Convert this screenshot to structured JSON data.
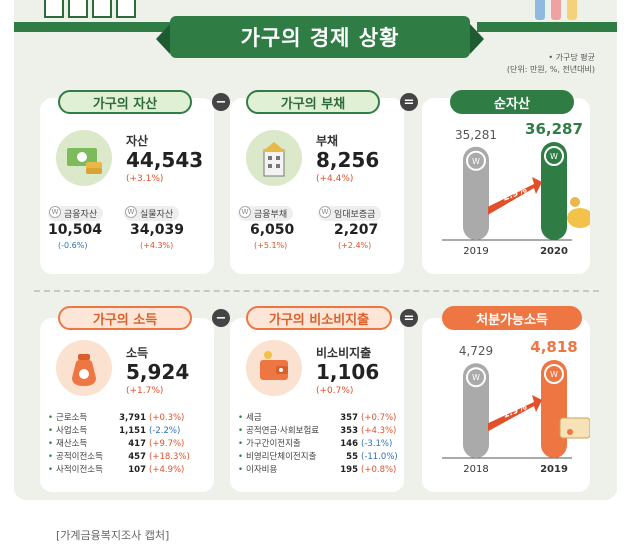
{
  "header": {
    "title": "가구의 경제 상황",
    "note1": "• 가구당 평균",
    "note2": "(단위: 만원, %, 전년대비)"
  },
  "colors": {
    "green": "#2f7d44",
    "orange": "#ee7643",
    "pos": "#e2502a",
    "neg": "#2e6fb7"
  },
  "row1": {
    "assets": {
      "pill": "가구의 자산",
      "name": "자산",
      "value": "44,543",
      "pct": "(+3.1%)",
      "sub": [
        {
          "label": "금융자산",
          "value": "10,504",
          "pct": "(-0.6%)"
        },
        {
          "label": "실물자산",
          "value": "34,039",
          "pct": "(+4.3%)"
        }
      ]
    },
    "debt": {
      "pill": "가구의 부채",
      "name": "부채",
      "value": "8,256",
      "pct": "(+4.4%)",
      "sub": [
        {
          "label": "금융부채",
          "value": "6,050",
          "pct": "(+5.1%)"
        },
        {
          "label": "임대보증금",
          "value": "2,207",
          "pct": "(+2.4%)"
        }
      ]
    },
    "net_pill": "순자산",
    "op1": "−",
    "op2": "="
  },
  "row2": {
    "income": {
      "pill": "가구의 소득",
      "name": "소득",
      "value": "5,924",
      "pct": "(+1.7%)",
      "breakdown": [
        {
          "name": "근로소득",
          "value": "3,791",
          "pct": "(+0.3%)"
        },
        {
          "name": "사업소득",
          "value": "1,151",
          "pct": "(-2.2%)"
        },
        {
          "name": "재산소득",
          "value": "417",
          "pct": "(+9.7%)"
        },
        {
          "name": "공적이전소득",
          "value": "457",
          "pct": "(+18.3%)"
        },
        {
          "name": "사적이전소득",
          "value": "107",
          "pct": "(+4.9%)"
        }
      ]
    },
    "nonconsumption": {
      "pill": "가구의 비소비지출",
      "name": "비소비지출",
      "value": "1,106",
      "pct": "(+0.7%)",
      "breakdown": [
        {
          "name": "세금",
          "value": "357",
          "pct": "(+0.7%)"
        },
        {
          "name": "공적연금·사회보험료",
          "value": "353",
          "pct": "(+4.3%)"
        },
        {
          "name": "가구간이전지출",
          "value": "146",
          "pct": "(-3.1%)"
        },
        {
          "name": "비영리단체이전지출",
          "value": "55",
          "pct": "(-11.0%)"
        },
        {
          "name": "이자비용",
          "value": "195",
          "pct": "(+0.8%)"
        }
      ]
    },
    "disp_pill": "처분가능소득",
    "op1": "−",
    "op2": "="
  },
  "chart_data": [
    {
      "type": "bar",
      "title": "순자산",
      "categories": [
        "2019",
        "2020"
      ],
      "values": [
        35281,
        36287
      ],
      "value_labels": [
        "35,281",
        "36,287"
      ],
      "growth_label": "2.9%"
    },
    {
      "type": "bar",
      "title": "처분가능소득",
      "categories": [
        "2018",
        "2019"
      ],
      "values": [
        4729,
        4818
      ],
      "value_labels": [
        "4,729",
        "4,818"
      ],
      "growth_label": "1.9%"
    }
  ],
  "caption": "[가계금융복지조사 캡처]"
}
